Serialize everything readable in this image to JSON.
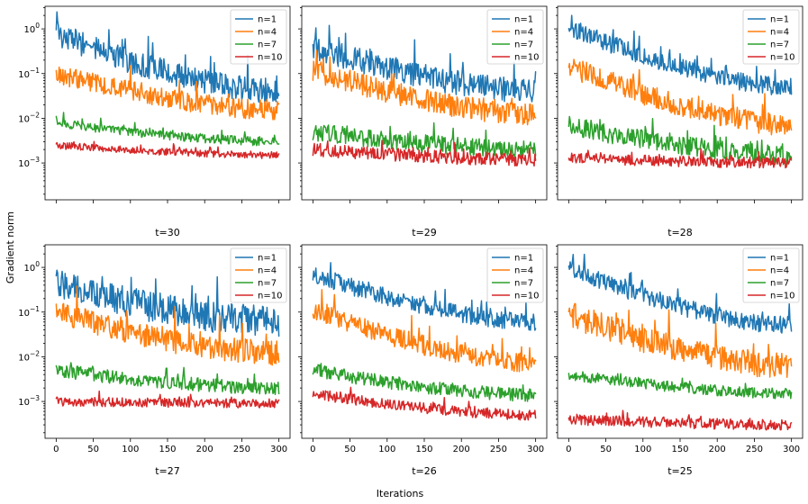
{
  "chart_data": {
    "type": "line",
    "xlabel": "Iterations",
    "ylabel": "Gradient norm",
    "yscale": "log",
    "ylim": [
      0.00015,
      3.2
    ],
    "xlim": [
      -15,
      315
    ],
    "x_ticks": [
      0,
      50,
      100,
      150,
      200,
      250,
      300
    ],
    "y_ticks": [
      {
        "value": 1,
        "label": "10^0"
      },
      {
        "value": 0.1,
        "label": "10^-1"
      },
      {
        "value": 0.01,
        "label": "10^-2"
      },
      {
        "value": 0.001,
        "label": "10^-3"
      }
    ],
    "legend_position": "top-right",
    "series_names": [
      "n=1",
      "n=4",
      "n=7",
      "n=10"
    ],
    "series_colors": [
      "#1f77b4",
      "#ff7f0e",
      "#2ca02c",
      "#d62728"
    ],
    "num_points": 301,
    "panels": [
      {
        "title": "t=30",
        "series": [
          {
            "name": "n=1",
            "start": 0.8,
            "end": 0.04,
            "noise": 0.28
          },
          {
            "name": "n=4",
            "start": 0.1,
            "end": 0.015,
            "noise": 0.22
          },
          {
            "name": "n=7",
            "start": 0.008,
            "end": 0.003,
            "noise": 0.1
          },
          {
            "name": "n=10",
            "start": 0.0025,
            "end": 0.0015,
            "noise": 0.08
          }
        ]
      },
      {
        "title": "t=29",
        "series": [
          {
            "name": "n=1",
            "start": 0.4,
            "end": 0.04,
            "noise": 0.28
          },
          {
            "name": "n=4",
            "start": 0.12,
            "end": 0.012,
            "noise": 0.25
          },
          {
            "name": "n=7",
            "start": 0.005,
            "end": 0.002,
            "noise": 0.2
          },
          {
            "name": "n=10",
            "start": 0.002,
            "end": 0.0012,
            "noise": 0.15
          }
        ]
      },
      {
        "title": "t=28",
        "series": [
          {
            "name": "n=1",
            "start": 1.1,
            "end": 0.05,
            "noise": 0.2
          },
          {
            "name": "n=4",
            "start": 0.15,
            "end": 0.007,
            "noise": 0.25
          },
          {
            "name": "n=7",
            "start": 0.007,
            "end": 0.0015,
            "noise": 0.22
          },
          {
            "name": "n=10",
            "start": 0.0013,
            "end": 0.001,
            "noise": 0.12
          }
        ]
      },
      {
        "title": "t=27",
        "series": [
          {
            "name": "n=1",
            "start": 0.4,
            "end": 0.06,
            "noise": 0.35
          },
          {
            "name": "n=4",
            "start": 0.1,
            "end": 0.012,
            "noise": 0.28
          },
          {
            "name": "n=7",
            "start": 0.005,
            "end": 0.002,
            "noise": 0.15
          },
          {
            "name": "n=10",
            "start": 0.001,
            "end": 0.0009,
            "noise": 0.1
          }
        ]
      },
      {
        "title": "t=26",
        "series": [
          {
            "name": "n=1",
            "start": 0.7,
            "end": 0.06,
            "noise": 0.2
          },
          {
            "name": "n=4",
            "start": 0.12,
            "end": 0.007,
            "noise": 0.22
          },
          {
            "name": "n=7",
            "start": 0.005,
            "end": 0.0014,
            "noise": 0.15
          },
          {
            "name": "n=10",
            "start": 0.0015,
            "end": 0.0005,
            "noise": 0.12
          }
        ]
      },
      {
        "title": "t=25",
        "series": [
          {
            "name": "n=1",
            "start": 1.0,
            "end": 0.05,
            "noise": 0.2
          },
          {
            "name": "n=4",
            "start": 0.09,
            "end": 0.006,
            "noise": 0.3
          },
          {
            "name": "n=7",
            "start": 0.004,
            "end": 0.0015,
            "noise": 0.12
          },
          {
            "name": "n=10",
            "start": 0.0004,
            "end": 0.0003,
            "noise": 0.12
          }
        ]
      }
    ]
  }
}
